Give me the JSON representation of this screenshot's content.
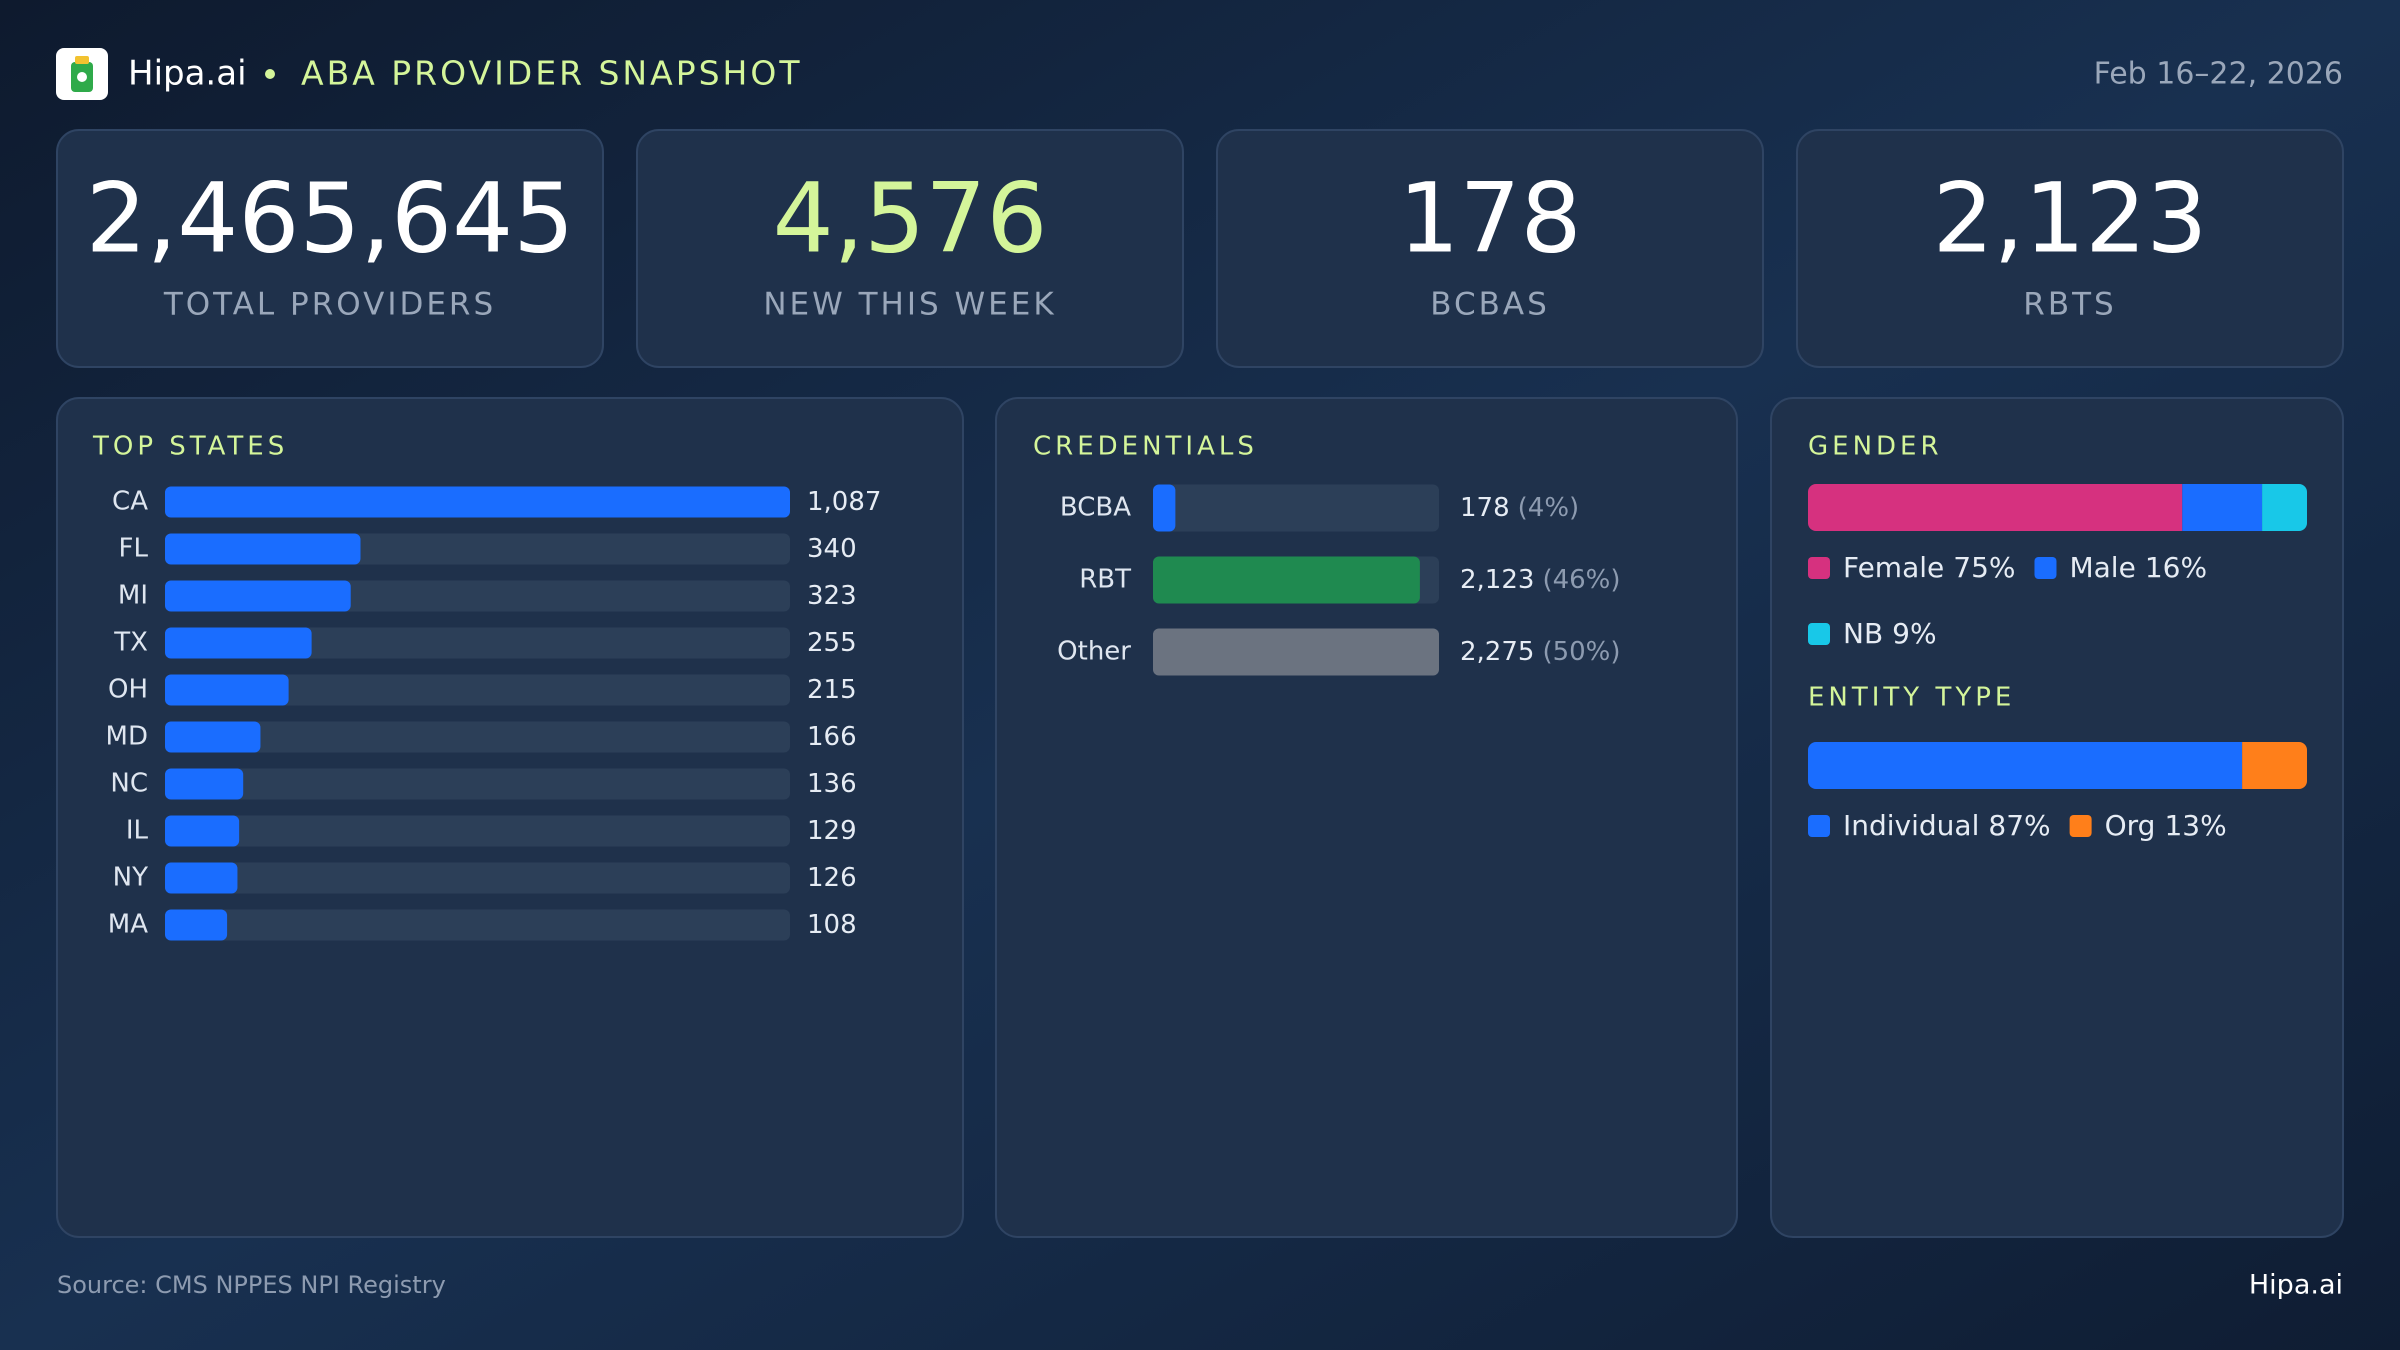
{
  "header": {
    "brand": "Hipa.ai",
    "title": "ABA PROVIDER SNAPSHOT",
    "date": "Feb 16–22, 2026"
  },
  "kpis": [
    {
      "value": "2,465,645",
      "label": "TOTAL PROVIDERS",
      "color": "#ffffff"
    },
    {
      "value": "4,576",
      "label": "NEW THIS WEEK",
      "color": "#d4f59a"
    },
    {
      "value": "178",
      "label": "BCBAS",
      "color": "#ffffff"
    },
    {
      "value": "2,123",
      "label": "RBTS",
      "color": "#ffffff"
    }
  ],
  "chart_data": [
    {
      "type": "hbar",
      "title": "TOP STATES",
      "categories": [
        "CA",
        "FL",
        "MI",
        "TX",
        "OH",
        "MD",
        "NC",
        "IL",
        "NY",
        "MA"
      ],
      "values": [
        1087,
        340,
        323,
        255,
        215,
        166,
        136,
        129,
        126,
        108
      ],
      "value_labels": [
        "1,087",
        "340",
        "323",
        "255",
        "215",
        "166",
        "136",
        "129",
        "126",
        "108"
      ],
      "color": "#1a6dff",
      "xlim": [
        0,
        1087
      ]
    },
    {
      "type": "hbar",
      "title": "CREDENTIALS",
      "categories": [
        "BCBA",
        "RBT",
        "Other"
      ],
      "values": [
        178,
        2123,
        2275
      ],
      "value_labels": [
        "178",
        "2,123",
        "2,275"
      ],
      "share_labels": [
        "(4%)",
        "(46%)",
        "(50%)"
      ],
      "colors": [
        "#1a6dff",
        "#1f8a50",
        "#6b7380"
      ],
      "xlim": [
        0,
        2275
      ]
    },
    {
      "type": "stacked",
      "title": "GENDER",
      "xlim": [
        0,
        100
      ],
      "series": [
        {
          "name": "Female",
          "color": "#d6317f",
          "values": [
            75
          ],
          "value_labels": [
            "75%"
          ]
        },
        {
          "name": "Male",
          "color": "#1a6dff",
          "values": [
            16
          ],
          "value_labels": [
            "16%"
          ]
        },
        {
          "name": "NB",
          "color": "#18c8e8",
          "values": [
            9
          ],
          "value_labels": [
            "9%"
          ]
        }
      ]
    },
    {
      "type": "stacked",
      "title": "ENTITY TYPE",
      "xlim": [
        0,
        100
      ],
      "series": [
        {
          "name": "Individual",
          "color": "#1a6dff",
          "values": [
            87
          ],
          "value_labels": [
            "87%"
          ]
        },
        {
          "name": "Org",
          "color": "#ff7f1a",
          "values": [
            13
          ],
          "value_labels": [
            "13%"
          ]
        }
      ]
    }
  ],
  "footer": {
    "source": "Source: CMS NPPES NPI Registry",
    "brand": "Hipa.ai"
  }
}
